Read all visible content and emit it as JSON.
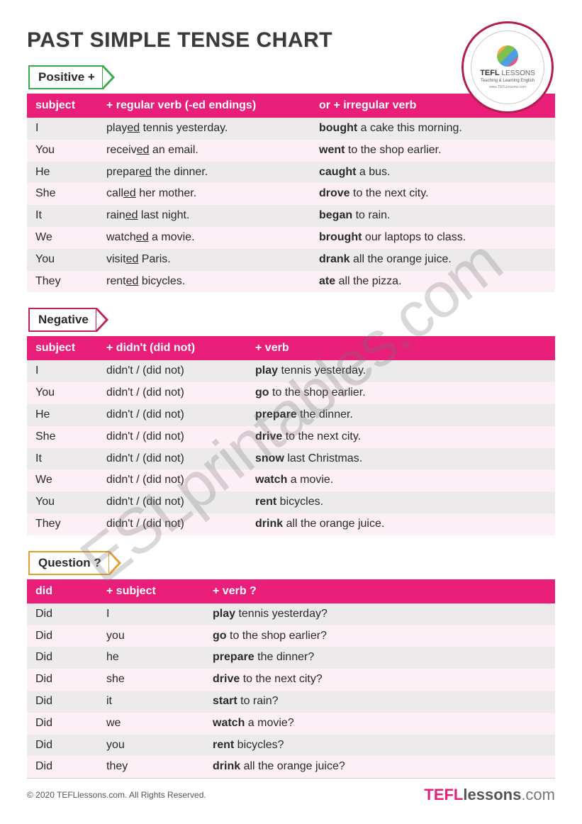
{
  "title": "PAST SIMPLE TENSE CHART",
  "logo": {
    "name_top": "TEFL",
    "name_bottom": "LESSONS",
    "tagline": "Teaching & Learning English",
    "url": "www.TEFLlessons.com"
  },
  "sections": {
    "positive": {
      "tab_label": "Positive +",
      "tab_color": "#3aa94a",
      "headers": [
        "subject",
        "+ regular verb (-ed endings)",
        "or   + irregular verb"
      ],
      "rows": [
        {
          "subject": "I",
          "regular_html": "play<span class='u'>ed</span> tennis yesterday.",
          "irregular_html": "<b>bought</b> a cake this morning."
        },
        {
          "subject": "You",
          "regular_html": "receiv<span class='u'>ed</span> an email.",
          "irregular_html": "<b>went</b> to the shop earlier."
        },
        {
          "subject": "He",
          "regular_html": "prepar<span class='u'>ed</span> the dinner.",
          "irregular_html": "<b>caught</b> a bus."
        },
        {
          "subject": "She",
          "regular_html": "call<span class='u'>ed</span> her mother.",
          "irregular_html": "<b>drove</b> to the next city."
        },
        {
          "subject": "It",
          "regular_html": "rain<span class='u'>ed</span> last night.",
          "irregular_html": "<b>began</b> to rain."
        },
        {
          "subject": "We",
          "regular_html": "watch<span class='u'>ed</span> a movie.",
          "irregular_html": "<b>brought</b> our laptops to class."
        },
        {
          "subject": "You",
          "regular_html": "visit<span class='u'>ed</span> Paris.",
          "irregular_html": "<b>drank</b> all the orange juice."
        },
        {
          "subject": "They",
          "regular_html": "rent<span class='u'>ed</span> bicycles.",
          "irregular_html": "<b>ate</b> all the pizza."
        }
      ]
    },
    "negative": {
      "tab_label": "Negative",
      "tab_color": "#c61f5d",
      "headers": [
        "subject",
        "+ didn't (did not)",
        "+ verb"
      ],
      "didnt_text": "didn't / (did not)",
      "rows": [
        {
          "subject": "I",
          "verb_html": "<b>play</b> tennis yesterday."
        },
        {
          "subject": "You",
          "verb_html": "<b>go</b> to the shop earlier."
        },
        {
          "subject": "He",
          "verb_html": "<b>prepare</b> the dinner."
        },
        {
          "subject": "She",
          "verb_html": "<b>drive</b> to the next city."
        },
        {
          "subject": "It",
          "verb_html": "<b>snow</b> last Christmas."
        },
        {
          "subject": "We",
          "verb_html": "<b>watch</b> a movie."
        },
        {
          "subject": "You",
          "verb_html": "<b>rent</b> bicycles."
        },
        {
          "subject": "They",
          "verb_html": "<b>drink</b> all the orange juice."
        }
      ]
    },
    "question": {
      "tab_label": "Question ?",
      "tab_color": "#e0a030",
      "headers": [
        "did",
        "+ subject",
        "+ verb ?"
      ],
      "did_text": "Did",
      "rows": [
        {
          "subject": "I",
          "verb_html": "<b>play</b> tennis yesterday?"
        },
        {
          "subject": "you",
          "verb_html": "<b>go</b> to the shop earlier?"
        },
        {
          "subject": "he",
          "verb_html": "<b>prepare</b> the dinner?"
        },
        {
          "subject": "she",
          "verb_html": "<b>drive</b> to the next city?"
        },
        {
          "subject": "it",
          "verb_html": "<b>start</b> to rain?"
        },
        {
          "subject": "we",
          "verb_html": "<b>watch</b> a movie?"
        },
        {
          "subject": "you",
          "verb_html": "<b>rent</b> bicycles?"
        },
        {
          "subject": "they",
          "verb_html": "<b>drink</b> all the orange juice?"
        }
      ]
    }
  },
  "watermark": "ESLprintables.com",
  "footer": {
    "copyright": "© 2020 TEFLlessons.com. All Rights Reserved.",
    "brand_tefl": "TEFL",
    "brand_lessons": "lessons",
    "brand_com": ".com"
  },
  "colors": {
    "header_bg": "#e91e79",
    "row_odd": "#eceaea",
    "row_even": "#fceff5",
    "text": "#2a2a2a"
  }
}
